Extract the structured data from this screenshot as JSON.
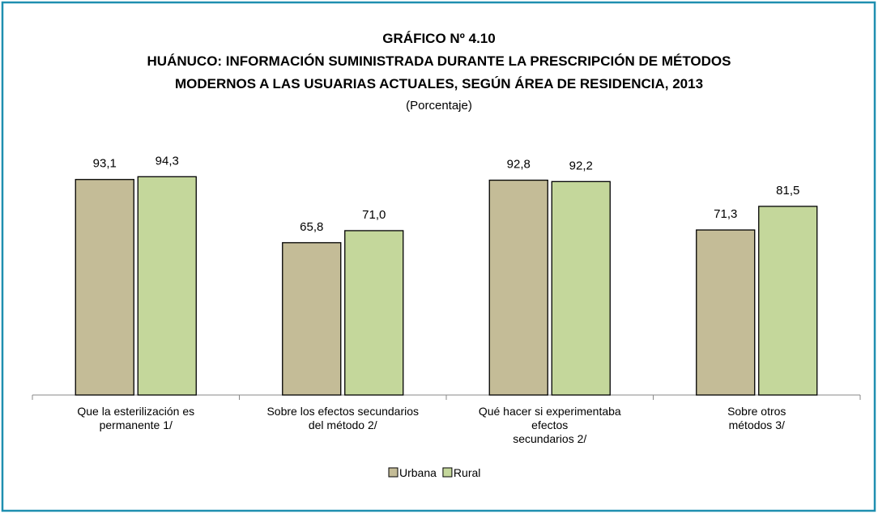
{
  "chart_data": {
    "type": "bar",
    "title": "GRÁFICO Nº 4.10",
    "subtitle": "HUÁNUCO: INFORMACIÓN SUMINISTRADA DURANTE LA PRESCRIPCIÓN DE MÉTODOS\nMODERNOS A LAS USUARIAS ACTUALES, SEGÚN ÁREA DE RESIDENCIA, 2013",
    "unit_label": "(Porcentaje)",
    "categories": [
      "Que la esterilización es\npermanente 1/",
      "Sobre los efectos secundarios\ndel método 2/",
      "Qué hacer si experimentaba\nefectos\nsecundarios 2/",
      "Sobre otros\nmétodos 3/"
    ],
    "series": [
      {
        "name": "Urbana",
        "color": "#c4bc97",
        "values": [
          93.1,
          65.8,
          92.8,
          71.3
        ],
        "value_labels": [
          "93,1",
          "65,8",
          "92,8",
          "71,3"
        ]
      },
      {
        "name": "Rural",
        "color": "#c4d79b",
        "values": [
          94.3,
          71.0,
          92.2,
          81.5
        ],
        "value_labels": [
          "94,3",
          "71,0",
          "92,2",
          "81,5"
        ]
      }
    ],
    "ylim": [
      0,
      100
    ]
  }
}
